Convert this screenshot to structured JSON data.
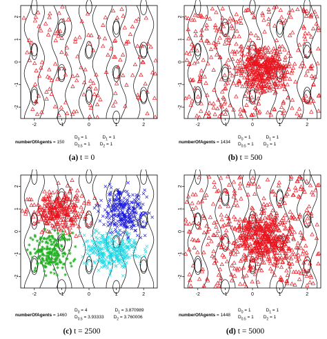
{
  "chart_data": [
    {
      "type": "scatter",
      "caption_label": "(a)",
      "caption_text": "t = 0",
      "xlim": [
        -2.5,
        2.5
      ],
      "ylim": [
        -2.5,
        2.5
      ],
      "x_ticks": [
        -2,
        -1,
        0,
        1,
        2
      ],
      "y_ticks": [
        -2,
        -1,
        0,
        1,
        2
      ],
      "agents_label": "numberOfAgents",
      "agents_value": "150",
      "stats": [
        [
          "D_0 = 1",
          "D_1 = 1"
        ],
        [
          "D_0.5 = 1",
          "D_2 = 1"
        ]
      ],
      "series": [
        {
          "color": "#e8141e",
          "marker": "triangle",
          "count": 150,
          "distribution": "uniform"
        }
      ]
    },
    {
      "type": "scatter",
      "caption_label": "(b)",
      "caption_text": "t = 500",
      "xlim": [
        -2.5,
        2.5
      ],
      "ylim": [
        -2.5,
        2.5
      ],
      "x_ticks": [
        -2,
        -1,
        0,
        1,
        2
      ],
      "y_ticks": [
        -2,
        -1,
        0,
        1,
        2
      ],
      "agents_label": "numberOfAgents",
      "agents_value": "1434",
      "stats": [
        [
          "D_0 = 1",
          "D_1 = 1"
        ],
        [
          "D_0.5 = 1",
          "D_2 = 1"
        ]
      ],
      "series": [
        {
          "color": "#e8141e",
          "marker": "triangle",
          "count": 1434,
          "distribution": "dense core centered near (0.4, -0.3)"
        }
      ]
    },
    {
      "type": "scatter",
      "caption_label": "(c)",
      "caption_text": "t = 2500",
      "xlim": [
        -2.5,
        2.5
      ],
      "ylim": [
        -2.5,
        2.5
      ],
      "x_ticks": [
        -2,
        -1,
        0,
        1,
        2
      ],
      "y_ticks": [
        -2,
        -1,
        0,
        1,
        2
      ],
      "agents_label": "numberOfAgents",
      "agents_value": "1460",
      "stats": [
        [
          "D_0 = 4",
          "D_1 = 3.870989"
        ],
        [
          "D_0.5 = 3.93333",
          "D_2 = 3.760006"
        ]
      ],
      "series": [
        {
          "color": "#e8141e",
          "marker": "triangle",
          "region": "upper-left"
        },
        {
          "color": "#1a1adc",
          "marker": "x",
          "region": "upper-right"
        },
        {
          "color": "#20b020",
          "marker": "asterisk",
          "region": "lower-left"
        },
        {
          "color": "#1ed8e6",
          "marker": "x",
          "region": "lower-right"
        }
      ]
    },
    {
      "type": "scatter",
      "caption_label": "(d)",
      "caption_text": "t = 5000",
      "xlim": [
        -2.5,
        2.5
      ],
      "ylim": [
        -2.5,
        2.5
      ],
      "x_ticks": [
        -2,
        -1,
        0,
        1,
        2
      ],
      "y_ticks": [
        -2,
        -1,
        0,
        1,
        2
      ],
      "agents_label": "numberOfAgents",
      "agents_value": "1448",
      "stats": [
        [
          "D_0 = 1",
          "D_1 = 1"
        ],
        [
          "D_0.5 = 1",
          "D_2 = 1"
        ]
      ],
      "series": [
        {
          "color": "#e8141e",
          "marker": "triangle",
          "count": 1448,
          "distribution": "spread across domain, concentrated in center"
        }
      ]
    }
  ]
}
